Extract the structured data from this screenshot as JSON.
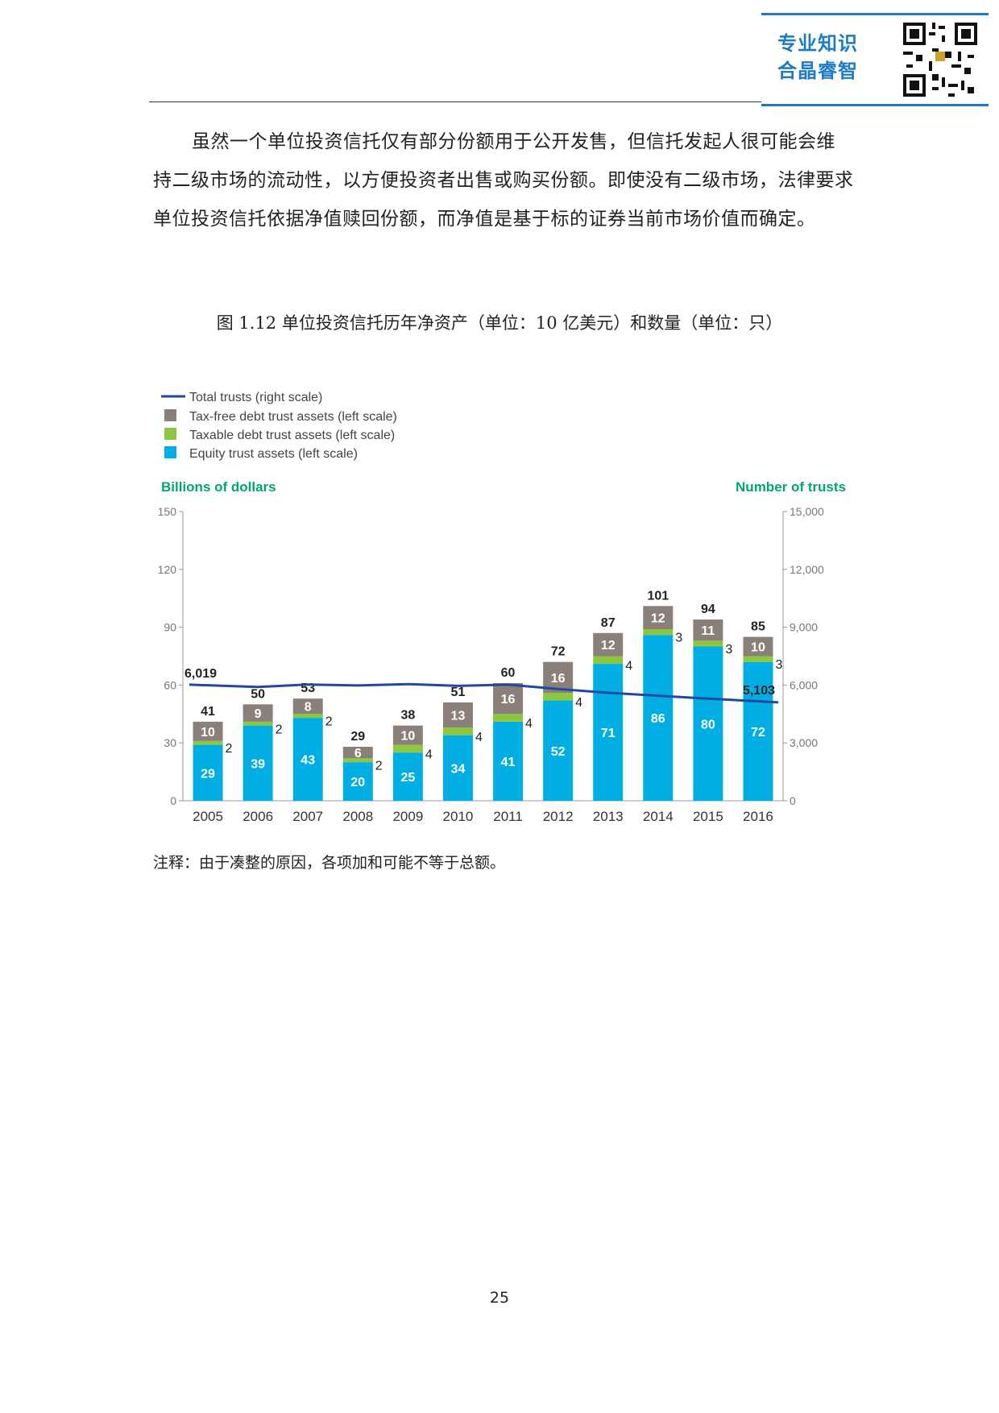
{
  "header": {
    "brand_line1": "专业知识",
    "brand_line2": "合晶睿智"
  },
  "paragraph": "虽然一个单位投资信托仅有部分份额用于公开发售，但信托发起人很可能会维持二级市场的流动性，以方便投资者出售或购买份额。即使没有二级市场，法律要求单位投资信托依据净值赎回份额，而净值是基于标的证券当前市场价值而确定。",
  "figure_title": "图 1.12  单位投资信托历年净资产（单位：10 亿美元）和数量（单位：只）",
  "note": "注释：由于凑整的原因，各项加和可能不等于总额。",
  "page_number": "25",
  "colors": {
    "equity": "#00aee4",
    "taxable": "#8dc63f",
    "taxfree": "#8a8079",
    "line": "#1f4aa0",
    "axis_label": "#00a66e",
    "axis": "#999999"
  },
  "chart_data": {
    "type": "bar",
    "stacked": true,
    "categories": [
      "2005",
      "2006",
      "2007",
      "2008",
      "2009",
      "2010",
      "2011",
      "2012",
      "2013",
      "2014",
      "2015",
      "2016"
    ],
    "series": [
      {
        "name": "Equity trust assets (left scale)",
        "values": [
          29,
          39,
          43,
          20,
          25,
          34,
          41,
          52,
          71,
          86,
          80,
          72
        ]
      },
      {
        "name": "Taxable debt trust assets (left scale)",
        "values": [
          2,
          2,
          2,
          2,
          4,
          4,
          4,
          4,
          4,
          3,
          3,
          3
        ]
      },
      {
        "name": "Tax-free debt trust assets (left scale)",
        "values": [
          10,
          9,
          8,
          6,
          10,
          13,
          16,
          16,
          12,
          12,
          11,
          10
        ]
      }
    ],
    "totals": [
      41,
      50,
      53,
      29,
      38,
      51,
      60,
      72,
      87,
      101,
      94,
      85
    ],
    "line_series": {
      "name": "Total trusts (right scale)",
      "values": [
        6019,
        5900,
        6030,
        5980,
        6050,
        5960,
        6020,
        5800,
        5600,
        5450,
        5300,
        5103
      ],
      "labels": {
        "first": "6,019",
        "last": "5,103"
      }
    },
    "legend": [
      "Total trusts (right scale)",
      "Tax-free debt trust assets (left scale)",
      "Taxable debt trust assets (left scale)",
      "Equity trust assets (left scale)"
    ],
    "ylabel": "Billions of dollars",
    "y2label": "Number of trusts",
    "ylim": [
      0,
      150
    ],
    "y2lim": [
      0,
      15000
    ],
    "yticks": [
      0,
      30,
      60,
      90,
      120,
      150
    ],
    "y2ticks": [
      0,
      3000,
      6000,
      9000,
      12000,
      15000
    ],
    "yticklabels": [
      "0",
      "30",
      "60",
      "90",
      "120",
      "150"
    ],
    "y2ticklabels": [
      "0",
      "3,000",
      "6,000",
      "9,000",
      "12,000",
      "15,000"
    ],
    "legend_position": "top-left"
  }
}
